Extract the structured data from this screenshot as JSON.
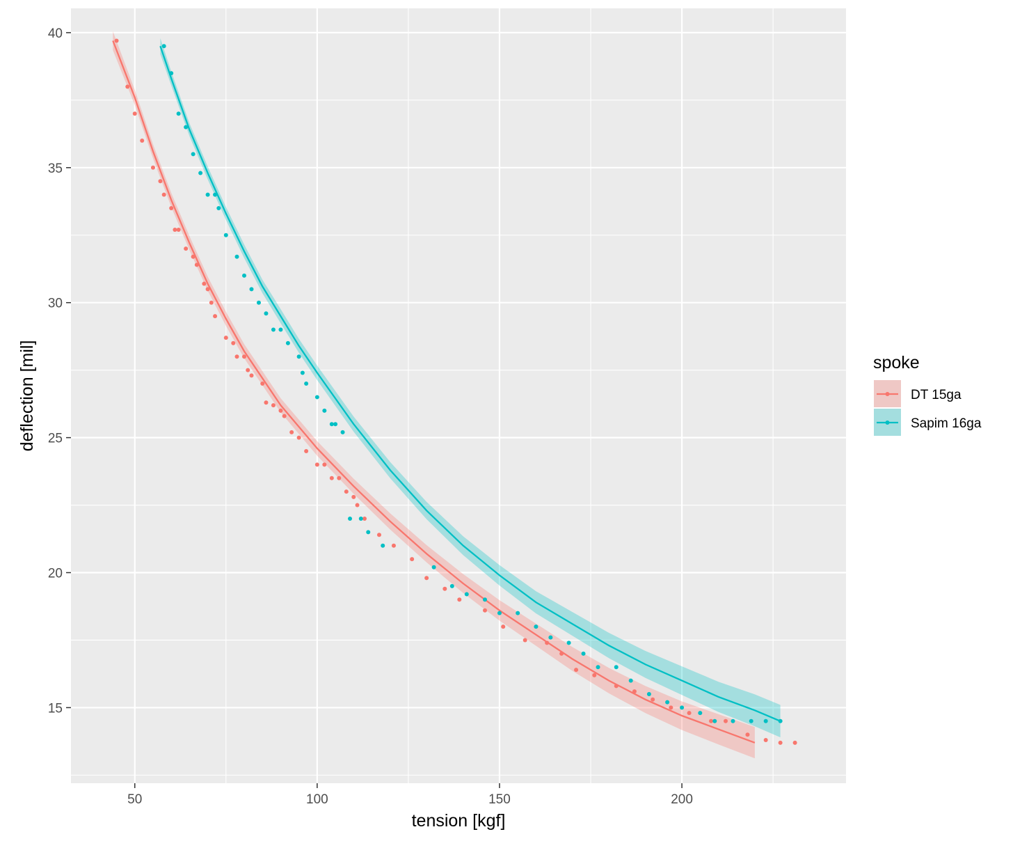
{
  "chart_data": {
    "type": "scatter",
    "xlabel": "tension [kgf]",
    "ylabel": "deflection [mil]",
    "xlim": [
      32.5,
      245
    ],
    "ylim": [
      12.2,
      40.9
    ],
    "x_ticks": [
      50,
      100,
      150,
      200
    ],
    "y_ticks": [
      15,
      20,
      25,
      30,
      35,
      40
    ],
    "grid": true,
    "background": "#EBEBEB",
    "legend": {
      "title": "spoke",
      "position": "right"
    },
    "series": [
      {
        "name": "DT 15ga",
        "color": "#F8766D",
        "fit": {
          "x": [
            44,
            50,
            55,
            60,
            65,
            70,
            75,
            80,
            90,
            100,
            110,
            120,
            130,
            140,
            150,
            160,
            170,
            180,
            190,
            200,
            210,
            220
          ],
          "y": [
            39.7,
            37.6,
            35.6,
            33.8,
            32.2,
            30.7,
            29.4,
            28.2,
            26.2,
            24.6,
            23.2,
            21.9,
            20.7,
            19.6,
            18.6,
            17.7,
            16.8,
            16.0,
            15.3,
            14.7,
            14.2,
            13.7
          ],
          "band": [
            0.35,
            0.28,
            0.26,
            0.26,
            0.26,
            0.26,
            0.26,
            0.26,
            0.26,
            0.27,
            0.28,
            0.3,
            0.32,
            0.35,
            0.38,
            0.41,
            0.44,
            0.47,
            0.5,
            0.53,
            0.56,
            0.58
          ]
        },
        "points": {
          "x": [
            45,
            48,
            50,
            52,
            55,
            57,
            58,
            60,
            61,
            62,
            64,
            66,
            67,
            69,
            70,
            71,
            72,
            75,
            77,
            78,
            80,
            81,
            82,
            85,
            86,
            88,
            90,
            91,
            93,
            95,
            97,
            100,
            102,
            104,
            106,
            108,
            110,
            111,
            113,
            117,
            121,
            126,
            130,
            135,
            139,
            146,
            151,
            157,
            163,
            167,
            171,
            176,
            182,
            187,
            192,
            197,
            202,
            208,
            212,
            218,
            223,
            227,
            231
          ],
          "y": [
            39.7,
            38.0,
            37.0,
            36.0,
            35.0,
            34.5,
            34.0,
            33.5,
            32.7,
            32.7,
            32.0,
            31.7,
            31.4,
            30.7,
            30.5,
            30.0,
            29.5,
            28.7,
            28.5,
            28.0,
            28.0,
            27.5,
            27.3,
            27.0,
            26.3,
            26.2,
            26.0,
            25.8,
            25.2,
            25.0,
            24.5,
            24.0,
            24.0,
            23.5,
            23.5,
            23.0,
            22.8,
            22.5,
            22.0,
            21.4,
            21.0,
            20.5,
            19.8,
            19.4,
            19.0,
            18.6,
            18.0,
            17.5,
            17.4,
            17.0,
            16.4,
            16.2,
            15.8,
            15.6,
            15.3,
            15.0,
            14.8,
            14.5,
            14.5,
            14.0,
            13.8,
            13.7,
            13.7
          ]
        }
      },
      {
        "name": "Sapim 16ga",
        "color": "#00BFC4",
        "fit": {
          "x": [
            57,
            60,
            65,
            70,
            75,
            80,
            85,
            90,
            95,
            100,
            110,
            120,
            130,
            140,
            150,
            160,
            170,
            180,
            190,
            200,
            210,
            220,
            227
          ],
          "y": [
            39.5,
            38.3,
            36.4,
            34.8,
            33.3,
            31.9,
            30.6,
            29.5,
            28.4,
            27.4,
            25.5,
            23.8,
            22.3,
            21.0,
            19.9,
            18.9,
            18.1,
            17.3,
            16.6,
            16.0,
            15.4,
            14.9,
            14.5
          ],
          "band": [
            0.3,
            0.26,
            0.24,
            0.24,
            0.24,
            0.25,
            0.25,
            0.26,
            0.26,
            0.27,
            0.28,
            0.3,
            0.32,
            0.35,
            0.38,
            0.41,
            0.44,
            0.47,
            0.5,
            0.53,
            0.56,
            0.59,
            0.6
          ]
        },
        "points": {
          "x": [
            58,
            60,
            62,
            64,
            66,
            68,
            70,
            72,
            73,
            75,
            78,
            80,
            82,
            84,
            86,
            88,
            90,
            92,
            95,
            96,
            97,
            100,
            102,
            104,
            105,
            107,
            109,
            112,
            114,
            118,
            132,
            137,
            141,
            146,
            150,
            155,
            160,
            164,
            169,
            173,
            177,
            182,
            186,
            191,
            196,
            200,
            205,
            209,
            214,
            219,
            223,
            227
          ],
          "y": [
            39.5,
            38.5,
            37.0,
            36.5,
            35.5,
            34.8,
            34.0,
            34.0,
            33.5,
            32.5,
            31.7,
            31.0,
            30.5,
            30.0,
            29.6,
            29.0,
            29.0,
            28.5,
            28.0,
            27.4,
            27.0,
            26.5,
            26.0,
            25.5,
            25.5,
            25.2,
            22.0,
            22.0,
            21.5,
            21.0,
            20.2,
            19.5,
            19.2,
            19.0,
            18.5,
            18.5,
            18.0,
            17.6,
            17.4,
            17.0,
            16.5,
            16.5,
            16.0,
            15.5,
            15.2,
            15.0,
            14.8,
            14.5,
            14.5,
            14.5,
            14.5,
            14.5
          ]
        }
      }
    ]
  }
}
